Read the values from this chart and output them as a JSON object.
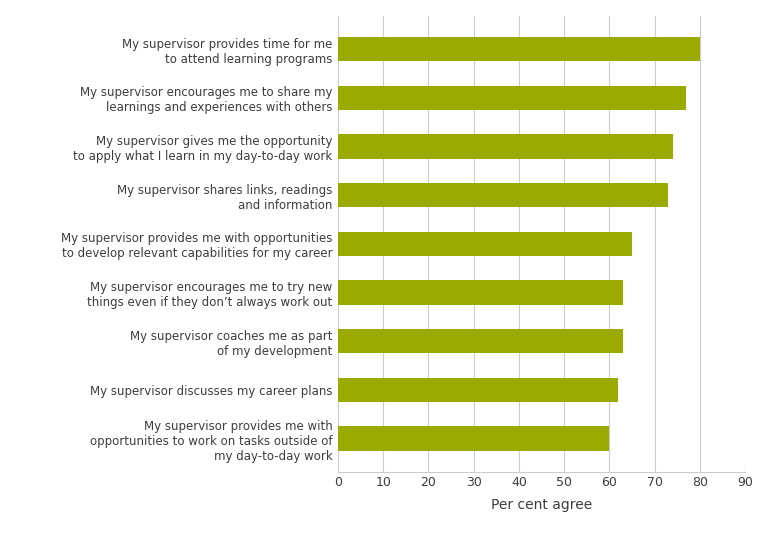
{
  "categories": [
    "My supervisor provides me with\nopportunities to work on tasks outside of\nmy day-to-day work",
    "My supervisor discusses my career plans",
    "My supervisor coaches me as part\nof my development",
    "My supervisor encourages me to try new\nthings even if they don’t always work out",
    "My supervisor provides me with opportunities\nto develop relevant capabilities for my career",
    "My supervisor shares links, readings\nand information",
    "My supervisor gives me the opportunity\nto apply what I learn in my day-to-day work",
    "My supervisor encourages me to share my\nlearnings and experiences with others",
    "My supervisor provides time for me\nto attend learning programs"
  ],
  "values": [
    60,
    62,
    63,
    63,
    65,
    73,
    74,
    77,
    80
  ],
  "bar_color": "#9aaa00",
  "xlabel": "Per cent agree",
  "xlim": [
    0,
    90
  ],
  "xticks": [
    0,
    10,
    20,
    30,
    40,
    50,
    60,
    70,
    80,
    90
  ],
  "background_color": "#ffffff",
  "grid_color": "#cccccc",
  "text_color": "#3d3d3d",
  "bar_height": 0.5,
  "figsize": [
    7.68,
    5.42
  ],
  "dpi": 100,
  "label_fontsize": 8.5,
  "xlabel_fontsize": 10
}
